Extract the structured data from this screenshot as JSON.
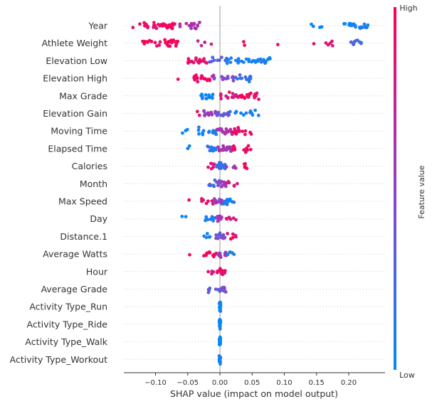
{
  "chart_data": {
    "type": "scatter",
    "subtype": "shap-beeswarm-summary",
    "xlabel": "SHAP value (impact on model output)",
    "x_ticks": [
      -0.1,
      -0.05,
      0.0,
      0.05,
      0.1,
      0.15,
      0.2
    ],
    "x_tick_labels": [
      "−0.10",
      "−0.05",
      "0.00",
      "0.05",
      "0.10",
      "0.15",
      "0.20"
    ],
    "xlim": [
      -0.15,
      0.245
    ],
    "zero_line": true,
    "colorbar": {
      "high_label": "High",
      "low_label": "Low",
      "title": "Feature value",
      "low_color": "#008bfb",
      "mid_color": "#8e44c8",
      "high_color": "#ff0052"
    },
    "colors": {
      "low": "#008bfb",
      "high": "#ff0052",
      "grid": "#cccccc",
      "zero_line": "#999999"
    },
    "features": [
      {
        "name": "Year",
        "clusters": [
          {
            "x_min": -0.135,
            "x_max": -0.11,
            "n": 10,
            "c": 0.92
          },
          {
            "x_min": -0.105,
            "x_max": -0.07,
            "n": 28,
            "c": 0.9
          },
          {
            "x_min": -0.07,
            "x_max": -0.03,
            "n": 14,
            "c": 0.62
          },
          {
            "x_min": 0.14,
            "x_max": 0.165,
            "n": 4,
            "c": 0.08
          },
          {
            "x_min": 0.185,
            "x_max": 0.23,
            "n": 22,
            "c": 0.05
          }
        ]
      },
      {
        "name": "Athlete Weight",
        "clusters": [
          {
            "x_min": -0.12,
            "x_max": -0.065,
            "n": 32,
            "c": 0.95
          },
          {
            "x_min": -0.035,
            "x_max": -0.01,
            "n": 4,
            "c": 0.7
          },
          {
            "x_min": 0.03,
            "x_max": 0.04,
            "n": 2,
            "c": 0.95
          },
          {
            "x_min": 0.09,
            "x_max": 0.095,
            "n": 1,
            "c": 0.85
          },
          {
            "x_min": 0.145,
            "x_max": 0.18,
            "n": 6,
            "c": 0.85
          },
          {
            "x_min": 0.2,
            "x_max": 0.23,
            "n": 10,
            "c": 0.25
          }
        ]
      },
      {
        "name": "Elevation Low",
        "clusters": [
          {
            "x_min": -0.05,
            "x_max": -0.02,
            "n": 18,
            "c": 0.88
          },
          {
            "x_min": -0.02,
            "x_max": 0.01,
            "n": 8,
            "c": 0.3
          },
          {
            "x_min": 0.01,
            "x_max": 0.045,
            "n": 14,
            "c": 0.08
          },
          {
            "x_min": 0.045,
            "x_max": 0.08,
            "n": 18,
            "c": 0.05
          }
        ]
      },
      {
        "name": "Elevation High",
        "clusters": [
          {
            "x_min": -0.065,
            "x_max": -0.065,
            "n": 1,
            "c": 0.95
          },
          {
            "x_min": -0.04,
            "x_max": -0.01,
            "n": 26,
            "c": 0.92
          },
          {
            "x_min": -0.01,
            "x_max": 0.025,
            "n": 14,
            "c": 0.45
          },
          {
            "x_min": 0.025,
            "x_max": 0.05,
            "n": 12,
            "c": 0.2
          }
        ]
      },
      {
        "name": "Max Grade",
        "clusters": [
          {
            "x_min": -0.03,
            "x_max": -0.01,
            "n": 16,
            "c": 0.05
          },
          {
            "x_min": 0.0,
            "x_max": 0.03,
            "n": 16,
            "c": 0.82
          },
          {
            "x_min": 0.03,
            "x_max": 0.062,
            "n": 20,
            "c": 0.92
          }
        ]
      },
      {
        "name": "Elevation Gain",
        "clusters": [
          {
            "x_min": -0.04,
            "x_max": -0.03,
            "n": 2,
            "c": 0.9
          },
          {
            "x_min": -0.025,
            "x_max": -0.005,
            "n": 14,
            "c": 0.55
          },
          {
            "x_min": -0.005,
            "x_max": 0.015,
            "n": 12,
            "c": 0.4
          },
          {
            "x_min": 0.015,
            "x_max": 0.06,
            "n": 12,
            "c": 0.06
          }
        ]
      },
      {
        "name": "Moving Time",
        "clusters": [
          {
            "x_min": -0.06,
            "x_max": -0.04,
            "n": 3,
            "c": 0.05
          },
          {
            "x_min": -0.035,
            "x_max": -0.005,
            "n": 14,
            "c": 0.1
          },
          {
            "x_min": -0.005,
            "x_max": 0.02,
            "n": 22,
            "c": 0.65
          },
          {
            "x_min": 0.02,
            "x_max": 0.05,
            "n": 14,
            "c": 0.9
          }
        ]
      },
      {
        "name": "Elapsed Time",
        "clusters": [
          {
            "x_min": -0.05,
            "x_max": -0.04,
            "n": 2,
            "c": 0.05
          },
          {
            "x_min": -0.025,
            "x_max": -0.005,
            "n": 12,
            "c": 0.1
          },
          {
            "x_min": -0.005,
            "x_max": 0.02,
            "n": 20,
            "c": 0.6
          },
          {
            "x_min": 0.02,
            "x_max": 0.048,
            "n": 14,
            "c": 0.9
          }
        ]
      },
      {
        "name": "Calories",
        "clusters": [
          {
            "x_min": -0.02,
            "x_max": -0.005,
            "n": 6,
            "c": 0.85
          },
          {
            "x_min": -0.005,
            "x_max": 0.01,
            "n": 18,
            "c": 0.2
          },
          {
            "x_min": 0.01,
            "x_max": 0.025,
            "n": 4,
            "c": 0.6
          },
          {
            "x_min": 0.03,
            "x_max": 0.042,
            "n": 5,
            "c": 0.95
          }
        ]
      },
      {
        "name": "Month",
        "clusters": [
          {
            "x_min": -0.02,
            "x_max": -0.005,
            "n": 6,
            "c": 0.25
          },
          {
            "x_min": -0.005,
            "x_max": 0.01,
            "n": 16,
            "c": 0.5
          },
          {
            "x_min": 0.01,
            "x_max": 0.03,
            "n": 6,
            "c": 0.85
          }
        ]
      },
      {
        "name": "Max Speed",
        "clusters": [
          {
            "x_min": -0.048,
            "x_max": -0.045,
            "n": 1,
            "c": 0.95
          },
          {
            "x_min": -0.03,
            "x_max": -0.01,
            "n": 8,
            "c": 0.9
          },
          {
            "x_min": -0.01,
            "x_max": 0.005,
            "n": 14,
            "c": 0.55
          },
          {
            "x_min": 0.005,
            "x_max": 0.022,
            "n": 10,
            "c": 0.08
          }
        ]
      },
      {
        "name": "Day",
        "clusters": [
          {
            "x_min": -0.065,
            "x_max": -0.052,
            "n": 2,
            "c": 0.05
          },
          {
            "x_min": -0.025,
            "x_max": -0.005,
            "n": 10,
            "c": 0.1
          },
          {
            "x_min": -0.005,
            "x_max": 0.005,
            "n": 10,
            "c": 0.6
          },
          {
            "x_min": 0.005,
            "x_max": 0.025,
            "n": 6,
            "c": 0.85
          }
        ]
      },
      {
        "name": "Distance.1",
        "clusters": [
          {
            "x_min": -0.025,
            "x_max": -0.01,
            "n": 5,
            "c": 0.08
          },
          {
            "x_min": -0.01,
            "x_max": 0.01,
            "n": 16,
            "c": 0.4
          },
          {
            "x_min": 0.01,
            "x_max": 0.025,
            "n": 6,
            "c": 0.9
          }
        ]
      },
      {
        "name": "Average Watts",
        "clusters": [
          {
            "x_min": -0.047,
            "x_max": -0.045,
            "n": 1,
            "c": 0.95
          },
          {
            "x_min": -0.025,
            "x_max": -0.005,
            "n": 14,
            "c": 0.92
          },
          {
            "x_min": -0.005,
            "x_max": 0.01,
            "n": 12,
            "c": 0.55
          },
          {
            "x_min": 0.01,
            "x_max": 0.022,
            "n": 5,
            "c": 0.1
          }
        ]
      },
      {
        "name": "Hour",
        "clusters": [
          {
            "x_min": -0.02,
            "x_max": -0.005,
            "n": 4,
            "c": 0.85
          },
          {
            "x_min": -0.005,
            "x_max": 0.012,
            "n": 16,
            "c": 0.92
          }
        ]
      },
      {
        "name": "Average Grade",
        "clusters": [
          {
            "x_min": -0.018,
            "x_max": -0.005,
            "n": 5,
            "c": 0.35
          },
          {
            "x_min": -0.005,
            "x_max": 0.01,
            "n": 12,
            "c": 0.4
          }
        ]
      },
      {
        "name": "Activity Type_Run",
        "clusters": [
          {
            "x_min": -0.001,
            "x_max": 0.001,
            "n": 18,
            "c": 0.05
          }
        ]
      },
      {
        "name": "Activity Type_Ride",
        "clusters": [
          {
            "x_min": -0.001,
            "x_max": 0.001,
            "n": 18,
            "c": 0.05
          }
        ]
      },
      {
        "name": "Activity Type_Walk",
        "clusters": [
          {
            "x_min": -0.001,
            "x_max": 0.001,
            "n": 18,
            "c": 0.05
          }
        ]
      },
      {
        "name": "Activity Type_Workout",
        "clusters": [
          {
            "x_min": -0.001,
            "x_max": 0.001,
            "n": 18,
            "c": 0.05
          }
        ]
      }
    ]
  }
}
